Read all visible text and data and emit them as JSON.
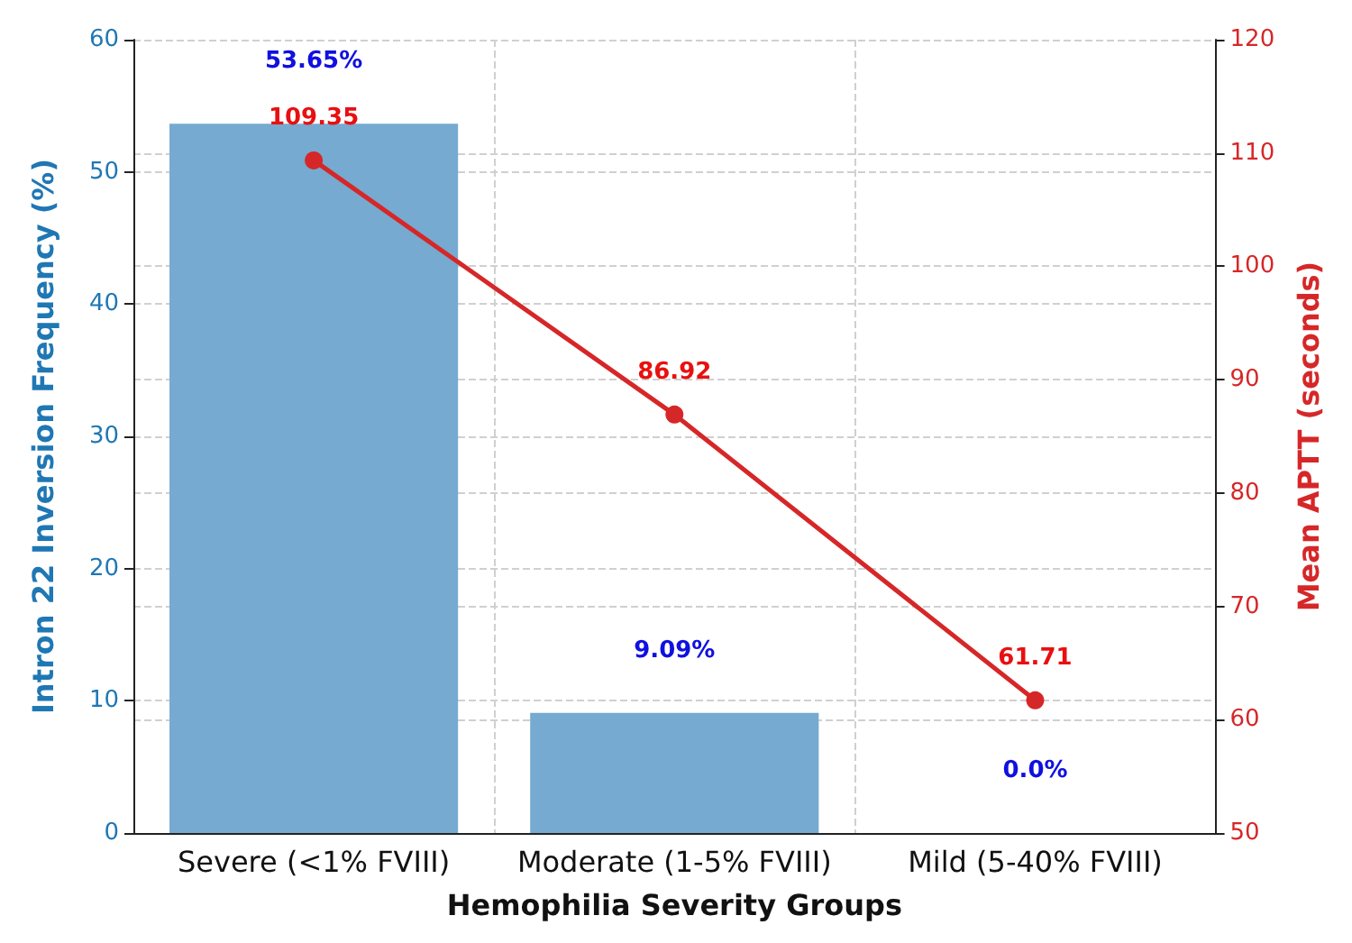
{
  "chart_data": {
    "type": "bar",
    "xlabel": "Hemophilia Severity Groups",
    "ylabel": "Intron 22 Inversion Frequency (%)",
    "y2label": "Mean APTT (seconds)",
    "categories": [
      "Severe (<1% FVIII)",
      "Moderate (1-5% FVIII)",
      "Mild (5-40% FVIII)"
    ],
    "series": [
      {
        "type": "bar",
        "color": "#76aad0",
        "values": [
          53.65,
          9.09,
          0.0
        ],
        "value_labels": [
          "53.65%",
          "9.09%",
          "0.0%"
        ]
      },
      {
        "type": "line",
        "axis": "y2",
        "color": "#d62728",
        "values": [
          109.35,
          86.92,
          61.71
        ],
        "value_labels": [
          "109.35",
          "86.92",
          "61.71"
        ]
      }
    ],
    "ylim": [
      0,
      60
    ],
    "yticks": [
      0,
      10,
      20,
      30,
      40,
      50,
      60
    ],
    "y2lim": [
      50,
      120
    ],
    "y2ticks": [
      50,
      60,
      70,
      80,
      90,
      100,
      110,
      120
    ],
    "grid": true,
    "marker": "circle",
    "line_style": "solid"
  }
}
